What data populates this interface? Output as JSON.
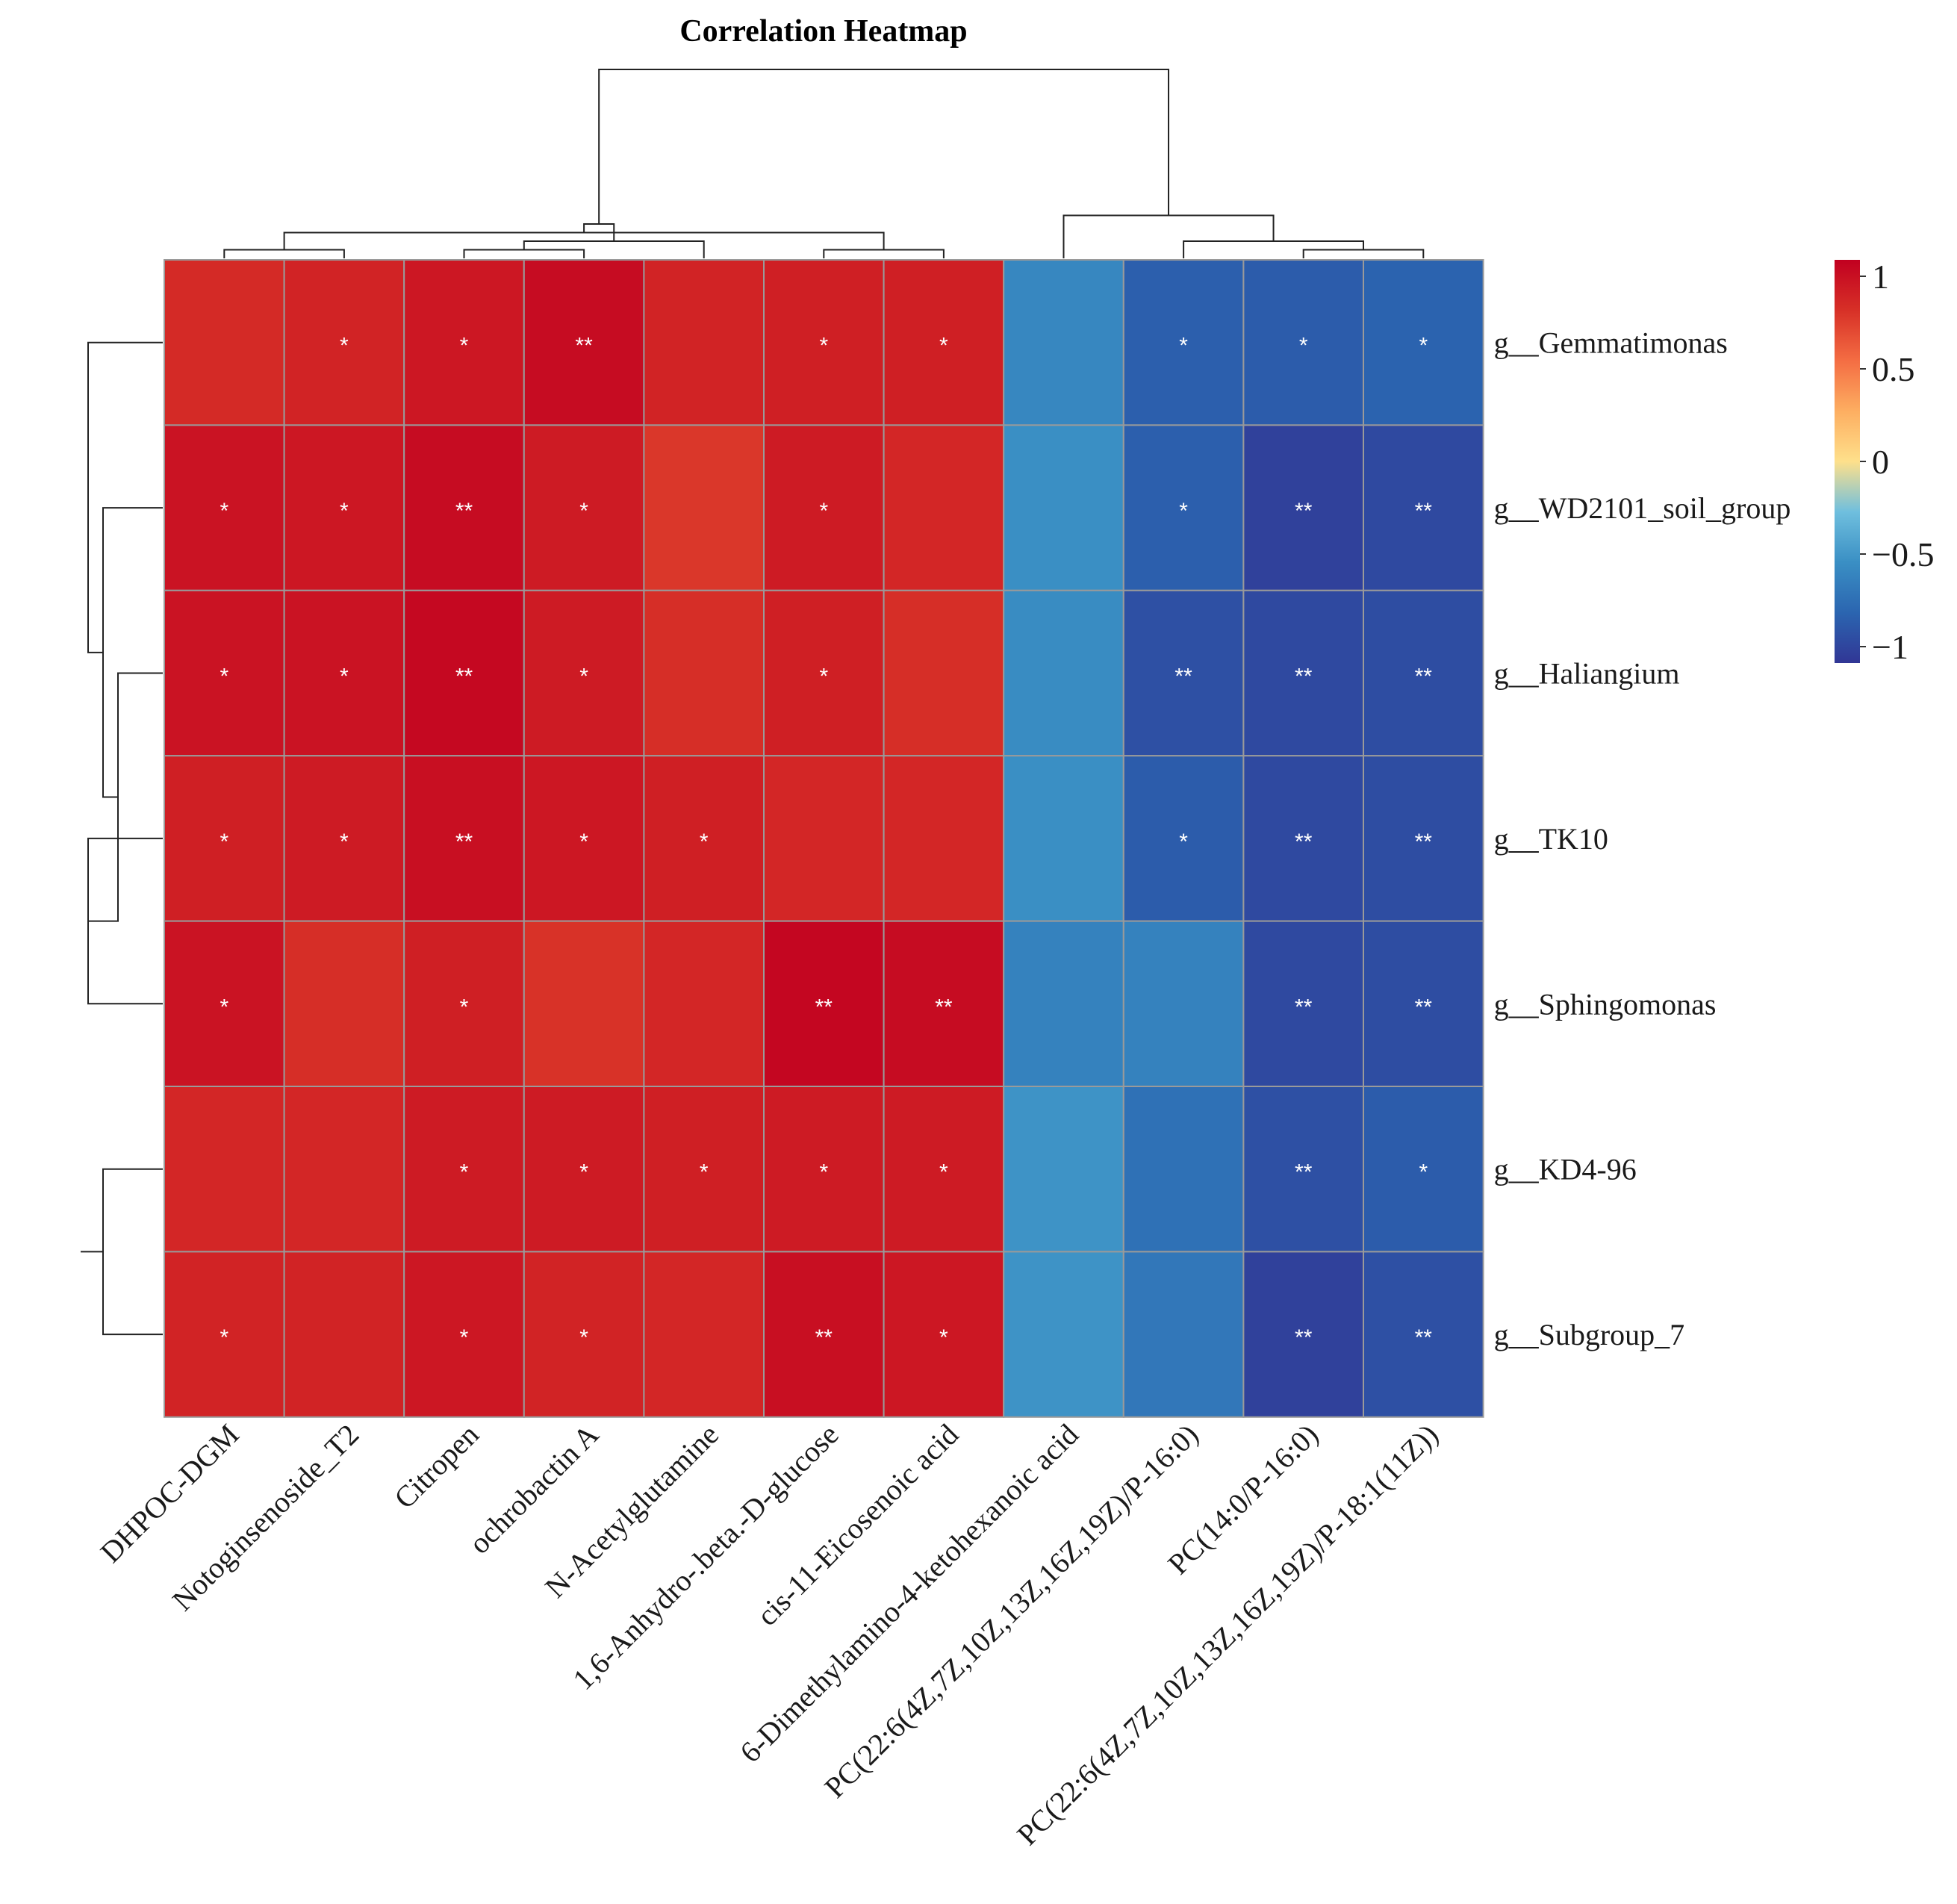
{
  "chart_data": {
    "type": "heatmap",
    "title": "Correlation Heatmap",
    "columns": [
      "DHPOC-DGM",
      "Notoginsenoside_T2",
      "Citropen",
      "ochrobactin A",
      "N-Acetylglutamine",
      "1,6-Anhydro-.beta.-D-glucose",
      "cis-11-Eicosenoic acid",
      "6-Dimethylamino-4-ketohexanoic acid",
      "PC(22:6(4Z,7Z,10Z,13Z,16Z,19Z)/P-16:0)",
      "PC(14:0/P-16:0)",
      "PC(22:6(4Z,7Z,10Z,13Z,16Z,19Z)/P-18:1(11Z))"
    ],
    "rows": [
      "g__Gemmatimonas",
      "g__WD2101_soil_group",
      "g__Haliangium",
      "g__TK10",
      "g__Sphingomonas",
      "g__KD4-96",
      "g__Subgroup_7"
    ],
    "values": [
      [
        0.78,
        0.82,
        0.88,
        0.94,
        0.82,
        0.84,
        0.84,
        -0.55,
        -0.78,
        -0.8,
        -0.76
      ],
      [
        0.9,
        0.88,
        0.94,
        0.86,
        0.72,
        0.86,
        0.8,
        -0.5,
        -0.78,
        -0.94,
        -0.9
      ],
      [
        0.9,
        0.9,
        0.96,
        0.86,
        0.76,
        0.84,
        0.76,
        -0.52,
        -0.86,
        -0.9,
        -0.88
      ],
      [
        0.84,
        0.86,
        0.92,
        0.88,
        0.84,
        0.8,
        0.8,
        -0.5,
        -0.8,
        -0.9,
        -0.88
      ],
      [
        0.9,
        0.76,
        0.84,
        0.74,
        0.8,
        0.97,
        0.94,
        -0.58,
        -0.58,
        -0.9,
        -0.88
      ],
      [
        0.8,
        0.8,
        0.86,
        0.86,
        0.84,
        0.86,
        0.86,
        -0.48,
        -0.68,
        -0.86,
        -0.8
      ],
      [
        0.82,
        0.82,
        0.88,
        0.82,
        0.8,
        0.92,
        0.88,
        -0.48,
        -0.64,
        -0.94,
        -0.86
      ]
    ],
    "significance": [
      [
        "",
        "*",
        "*",
        "**",
        "",
        "*",
        "*",
        "",
        "*",
        "*",
        "*"
      ],
      [
        "*",
        "*",
        "**",
        "*",
        "",
        "*",
        "",
        "",
        "*",
        "**",
        "**"
      ],
      [
        "*",
        "*",
        "**",
        "*",
        "",
        "*",
        "",
        "",
        "**",
        "**",
        "**"
      ],
      [
        "*",
        "*",
        "**",
        "*",
        "*",
        "",
        "",
        "",
        "*",
        "**",
        "**"
      ],
      [
        "*",
        "",
        "*",
        "",
        "",
        "**",
        "**",
        "",
        "",
        "**",
        "**"
      ],
      [
        "",
        "",
        "*",
        "*",
        "*",
        "*",
        "*",
        "",
        "",
        "**",
        "*"
      ],
      [
        "*",
        "",
        "*",
        "*",
        "",
        "**",
        "*",
        "",
        "",
        "**",
        "**"
      ]
    ],
    "color_scale": {
      "range": [
        -1,
        1
      ],
      "ticks": [
        "1",
        "0.5",
        "0",
        "−0.5",
        "−1"
      ],
      "colors": [
        "#313695",
        "#2b65b0",
        "#3a8fc4",
        "#6fbfde",
        "#fee08b",
        "#fdae61",
        "#f46d43",
        "#d73027",
        "#c10020"
      ]
    },
    "col_dendrogram": [
      [
        1,
        2
      ],
      [
        3,
        4
      ],
      [
        6,
        7
      ],
      [
        -2,
        5
      ],
      [
        -1,
        -3
      ],
      [
        -4,
        -5
      ],
      [
        10,
        11
      ],
      [
        9,
        -7
      ],
      [
        8,
        -8
      ],
      [
        -6,
        -9
      ]
    ],
    "row_dendrogram": [
      [
        6,
        7
      ],
      [
        4,
        5
      ],
      [
        3,
        -2
      ],
      [
        2,
        -3
      ],
      [
        1,
        -4
      ],
      [
        -1,
        0
      ],
      [
        -6,
        -5
      ]
    ],
    "row_dendrogram_note": ""
  }
}
